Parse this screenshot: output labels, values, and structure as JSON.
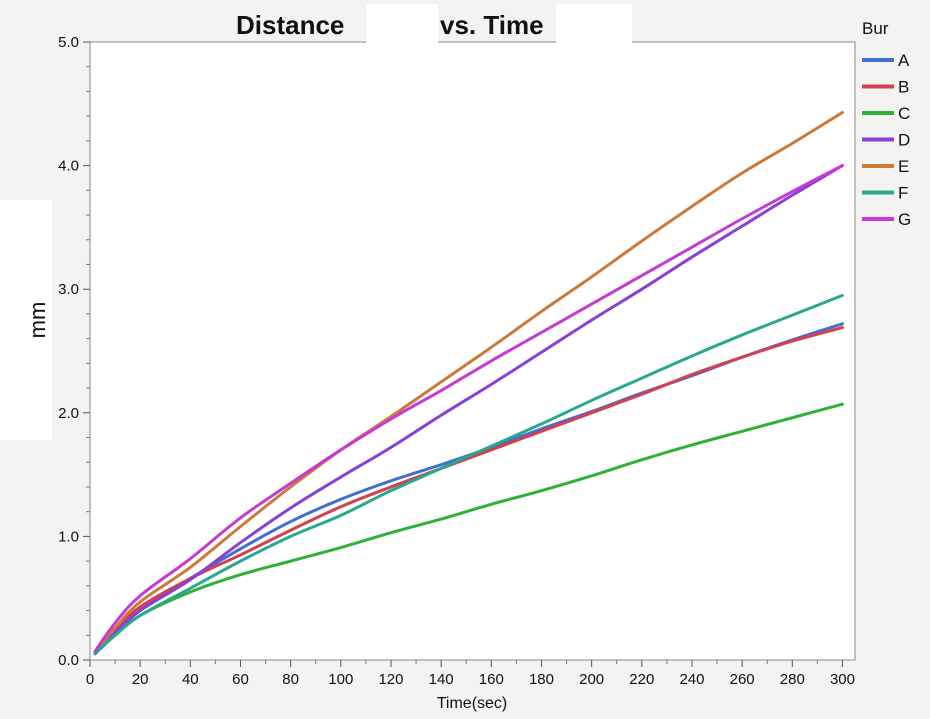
{
  "chart_data": {
    "type": "line",
    "title_left": "Distance",
    "title_right": "vs. Time",
    "xlabel": "Time(sec)",
    "ylabel": "mm",
    "xlim": [
      0,
      305
    ],
    "ylim": [
      0,
      5
    ],
    "x_ticks": [
      0,
      20,
      40,
      60,
      80,
      100,
      120,
      140,
      160,
      180,
      200,
      220,
      240,
      260,
      280,
      300
    ],
    "y_ticks": [
      0,
      1,
      2,
      3,
      4,
      5
    ],
    "y_tick_labels": [
      "0.0",
      "1.0",
      "2.0",
      "3.0",
      "4.0",
      "5.0"
    ],
    "grid": false,
    "legend": {
      "title": "Bur",
      "placement": "right"
    },
    "x": [
      2,
      10,
      20,
      40,
      60,
      80,
      100,
      120,
      140,
      160,
      180,
      200,
      220,
      240,
      260,
      280,
      300
    ],
    "series": [
      {
        "name": "A",
        "color": "#3f6fd1",
        "values": [
          0.06,
          0.22,
          0.4,
          0.66,
          0.9,
          1.12,
          1.3,
          1.45,
          1.58,
          1.72,
          1.87,
          2.01,
          2.16,
          2.3,
          2.45,
          2.59,
          2.72
        ]
      },
      {
        "name": "B",
        "color": "#d4404e",
        "values": [
          0.06,
          0.24,
          0.43,
          0.66,
          0.85,
          1.05,
          1.24,
          1.4,
          1.55,
          1.7,
          1.85,
          2.0,
          2.15,
          2.31,
          2.45,
          2.58,
          2.69
        ]
      },
      {
        "name": "C",
        "color": "#2fb036",
        "values": [
          0.05,
          0.2,
          0.36,
          0.55,
          0.69,
          0.8,
          0.91,
          1.03,
          1.14,
          1.26,
          1.37,
          1.49,
          1.62,
          1.74,
          1.85,
          1.96,
          2.07
        ]
      },
      {
        "name": "D",
        "color": "#8a3fd6",
        "values": [
          0.05,
          0.22,
          0.4,
          0.65,
          0.95,
          1.23,
          1.48,
          1.72,
          1.98,
          2.23,
          2.49,
          2.75,
          3.0,
          3.26,
          3.51,
          3.76,
          4.0
        ]
      },
      {
        "name": "E",
        "color": "#cc7a3a",
        "values": [
          0.06,
          0.26,
          0.47,
          0.75,
          1.08,
          1.4,
          1.7,
          1.97,
          2.25,
          2.53,
          2.82,
          3.1,
          3.39,
          3.67,
          3.94,
          4.18,
          4.43
        ]
      },
      {
        "name": "F",
        "color": "#29a88e",
        "values": [
          0.05,
          0.2,
          0.36,
          0.58,
          0.8,
          1.0,
          1.17,
          1.37,
          1.55,
          1.73,
          1.91,
          2.1,
          2.28,
          2.46,
          2.63,
          2.79,
          2.95
        ]
      },
      {
        "name": "G",
        "color": "#c63ad3",
        "values": [
          0.07,
          0.3,
          0.52,
          0.82,
          1.15,
          1.43,
          1.7,
          1.95,
          2.18,
          2.42,
          2.65,
          2.88,
          3.11,
          3.34,
          3.57,
          3.79,
          4.0
        ]
      }
    ]
  }
}
